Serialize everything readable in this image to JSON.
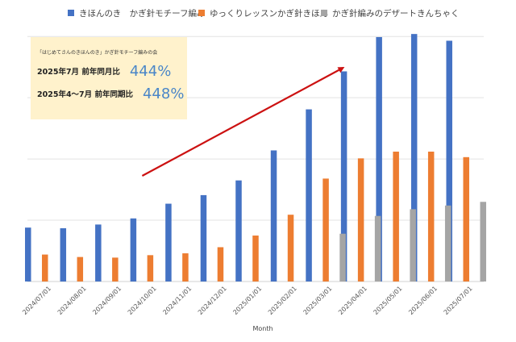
{
  "chart_data": {
    "type": "bar",
    "categories": [
      "2024/07/01",
      "2024/08/01",
      "2024/09/01",
      "2024/10/01",
      "2024/11/01",
      "2024/12/01",
      "2025/01/01",
      "2025/02/01",
      "2025/03/01",
      "2025/04/01",
      "2025/05/01",
      "2025/06/01",
      "2025/07/01"
    ],
    "series": [
      {
        "name": "きほんのき　かぎ針モチーフ編み",
        "color": "#4472c4",
        "values": [
          88,
          87,
          93,
          103,
          127,
          141,
          165,
          214,
          281,
          343,
          399,
          404,
          393
        ]
      },
      {
        "name": "ゆっくりレッスンかぎ針きほん",
        "color": "#ed7d31",
        "values": [
          44,
          40,
          39,
          43,
          46,
          56,
          75,
          109,
          168,
          201,
          212,
          212,
          203
        ]
      },
      {
        "name": "かぎ針編みのデザートきんちゃく",
        "color": "#a5a5a5",
        "values": [
          null,
          null,
          null,
          null,
          null,
          null,
          null,
          null,
          78,
          107,
          118,
          124,
          130
        ]
      }
    ],
    "xlabel": "Month",
    "ylabel": "",
    "ylim": [
      0,
      420
    ],
    "grid": true,
    "legend": "top",
    "annotation": {
      "header": "「はじめてさんのきほんのき」かぎ針モチーフ編みの会",
      "rows": [
        {
          "label": "2025年7月 前年同月比",
          "value": "444%"
        },
        {
          "label": "2025年4～7月 前年同期比",
          "value": "448%"
        }
      ]
    },
    "trend_arrow": {
      "color": "#cc1111",
      "from_category": "2024/10/01",
      "to_category": "2025/04/01"
    }
  }
}
